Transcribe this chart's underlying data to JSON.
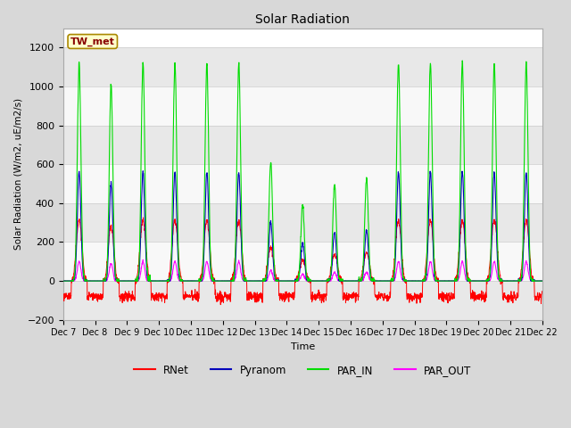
{
  "title": "Solar Radiation",
  "ylabel": "Solar Radiation (W/m2, uE/m2/s)",
  "xlabel": "Time",
  "ylim": [
    -200,
    1300
  ],
  "yticks": [
    -200,
    0,
    200,
    400,
    600,
    800,
    1000,
    1200
  ],
  "n_days": 15,
  "colors": {
    "RNet": "#ff0000",
    "Pyranom": "#0000bb",
    "PAR_IN": "#00dd00",
    "PAR_OUT": "#ff00ff"
  },
  "station_label": "TW_met",
  "station_label_fgcolor": "#880000",
  "station_label_bgcolor": "#ffffcc",
  "fig_bg_color": "#d8d8d8",
  "plot_bg_color": "#ffffff",
  "band_colors": [
    "#e8e8e8",
    "#f8f8f8"
  ],
  "x_tick_labels": [
    "Dec 7",
    "Dec 8",
    "Dec 9",
    "Dec 10",
    "Dec 11",
    "Dec 12",
    "Dec 13",
    "Dec 14",
    "Dec 15",
    "Dec 16",
    "Dec 17",
    "Dec 18",
    "Dec 19",
    "Dec 20",
    "Dec 21",
    "Dec 22"
  ],
  "cloud_factors": [
    1.0,
    0.9,
    1.0,
    1.0,
    1.0,
    1.0,
    0.55,
    0.35,
    0.45,
    0.47,
    1.0,
    1.0,
    1.0,
    1.0,
    1.0
  ],
  "pts_per_day": 144
}
